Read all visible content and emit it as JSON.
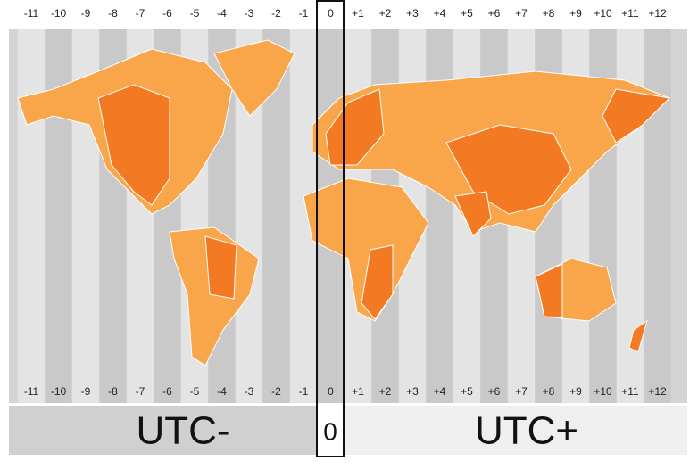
{
  "zones": [
    "-11",
    "-10",
    "-9",
    "-8",
    "-7",
    "-6",
    "-5",
    "-4",
    "-3",
    "-2",
    "-1",
    "0",
    "+1",
    "+2",
    "+3",
    "+4",
    "+5",
    "+6",
    "+7",
    "+8",
    "+9",
    "+10",
    "+11",
    "+12"
  ],
  "footer": {
    "left": "UTC-",
    "center": "0",
    "right": "UTC+"
  }
}
